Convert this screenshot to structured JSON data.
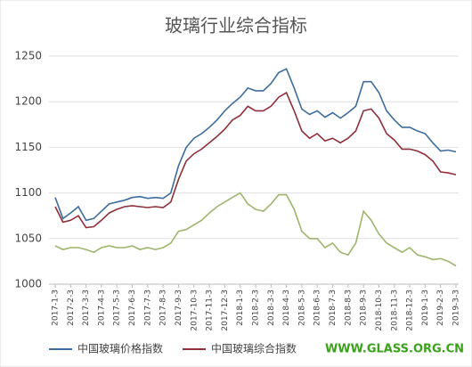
{
  "chart_data": {
    "type": "line",
    "title": "玻璃行业综合指标",
    "categories": [
      "2017-1-3",
      null,
      "2017-2-3",
      null,
      "2017-3-3",
      null,
      "2017-4-3",
      null,
      "2017-5-3",
      null,
      "2017-6-3",
      null,
      "2017-7-3",
      null,
      "2017-8-3",
      null,
      "2017-9-3",
      null,
      "2017-10-3",
      null,
      "2017-11-3",
      null,
      "2017-12-3",
      null,
      "2018-1-3",
      null,
      "2018-2-3",
      null,
      "2018-3-3",
      null,
      "2018-4-3",
      null,
      "2018-5-3",
      null,
      "2018-6-3",
      null,
      "2018-7-3",
      null,
      "2018-8-3",
      null,
      "2018-9-3",
      null,
      "2018-10-3",
      null,
      "2018-11-3",
      null,
      "2018-12-3",
      null,
      "2019-1-3",
      null,
      "2019-2-3",
      null,
      "2019-3-3"
    ],
    "series": [
      {
        "name": "中国玻璃价格指数",
        "color": "#3e6d9c",
        "values": [
          1095,
          1072,
          1078,
          1085,
          1070,
          1072,
          1080,
          1088,
          1090,
          1092,
          1095,
          1096,
          1094,
          1095,
          1094,
          1100,
          1130,
          1150,
          1160,
          1165,
          1172,
          1180,
          1190,
          1198,
          1205,
          1215,
          1212,
          1212,
          1220,
          1232,
          1236,
          1215,
          1192,
          1186,
          1190,
          1183,
          1188,
          1182,
          1188,
          1195,
          1222,
          1222,
          1210,
          1190,
          1180,
          1172,
          1172,
          1168,
          1165,
          1155,
          1146,
          1147,
          1145
        ]
      },
      {
        "name": "中国玻璃综合指数",
        "color": "#8e2f3a",
        "values": [
          1085,
          1068,
          1070,
          1075,
          1062,
          1063,
          1070,
          1078,
          1082,
          1085,
          1086,
          1085,
          1084,
          1085,
          1084,
          1090,
          1115,
          1135,
          1143,
          1148,
          1155,
          1162,
          1170,
          1180,
          1185,
          1195,
          1190,
          1190,
          1195,
          1205,
          1210,
          1190,
          1168,
          1160,
          1165,
          1157,
          1160,
          1155,
          1160,
          1168,
          1190,
          1192,
          1182,
          1165,
          1158,
          1148,
          1148,
          1146,
          1142,
          1135,
          1123,
          1122,
          1120
        ]
      },
      {
        "color": "#9db56c",
        "values": [
          1042,
          1038,
          1040,
          1040,
          1038,
          1035,
          1040,
          1042,
          1040,
          1040,
          1042,
          1038,
          1040,
          1038,
          1040,
          1045,
          1058,
          1060,
          1065,
          1070,
          1078,
          1085,
          1090,
          1095,
          1100,
          1088,
          1082,
          1080,
          1088,
          1098,
          1098,
          1082,
          1058,
          1050,
          1050,
          1040,
          1045,
          1035,
          1032,
          1045,
          1080,
          1070,
          1055,
          1045,
          1040,
          1035,
          1040,
          1032,
          1030,
          1027,
          1028,
          1025,
          1020
        ]
      }
    ],
    "ylim": [
      1000,
      1250
    ],
    "yticks": [
      1000,
      1050,
      1100,
      1150,
      1200,
      1250
    ],
    "grid": true,
    "watermark": "WWW.GLASS.ORG.CN"
  }
}
